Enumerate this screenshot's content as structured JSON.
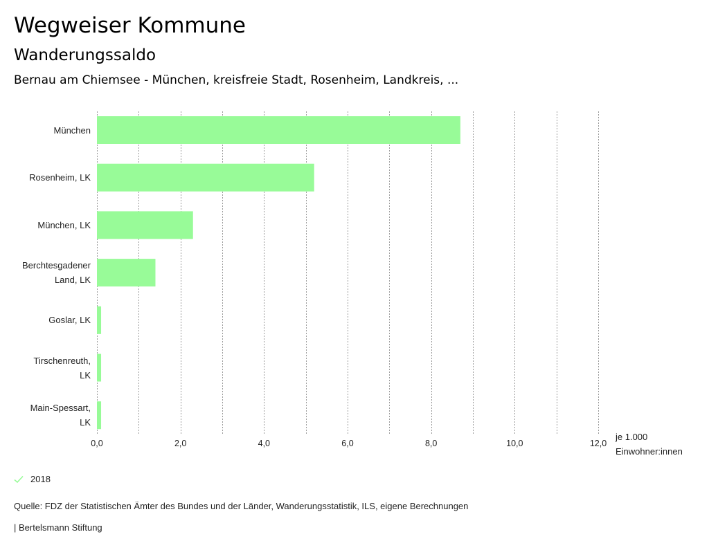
{
  "header": {
    "title": "Wegweiser Kommune",
    "subtitle": "Wanderungssaldo",
    "region": "Bernau am Chiemsee - München, kreisfreie Stadt, Rosenheim, Landkreis, ..."
  },
  "legend": {
    "label": "2018",
    "color": "#98fb98"
  },
  "footer": {
    "source": "Quelle: FDZ der Statistischen Ämter des Bundes und der Länder, Wanderungsstatistik, ILS, eigene Berechnungen",
    "credit": "| Bertelsmann Stiftung"
  },
  "chart_data": {
    "type": "bar",
    "orientation": "horizontal",
    "title": "Wanderungssaldo",
    "categories": [
      [
        "München"
      ],
      [
        "Rosenheim, LK"
      ],
      [
        "München, LK"
      ],
      [
        "Berchtesgadener",
        "Land, LK"
      ],
      [
        "Goslar, LK"
      ],
      [
        "Tirschenreuth,",
        "LK"
      ],
      [
        "Main-Spessart,",
        "LK"
      ]
    ],
    "series": [
      {
        "name": "2018",
        "color": "#98fb98",
        "values": [
          8.7,
          5.2,
          2.3,
          1.4,
          0.1,
          0.1,
          0.1
        ]
      }
    ],
    "xlim": [
      0,
      12
    ],
    "xticks": [
      0,
      2,
      4,
      6,
      8,
      10,
      12
    ],
    "xtick_labels": [
      "0,0",
      "2,0",
      "4,0",
      "6,0",
      "8,0",
      "10,0",
      "12,0"
    ],
    "xlabel": [
      "je 1.000",
      "Einwohner:innen"
    ],
    "grid": true,
    "legend_position": "bottom-left"
  }
}
